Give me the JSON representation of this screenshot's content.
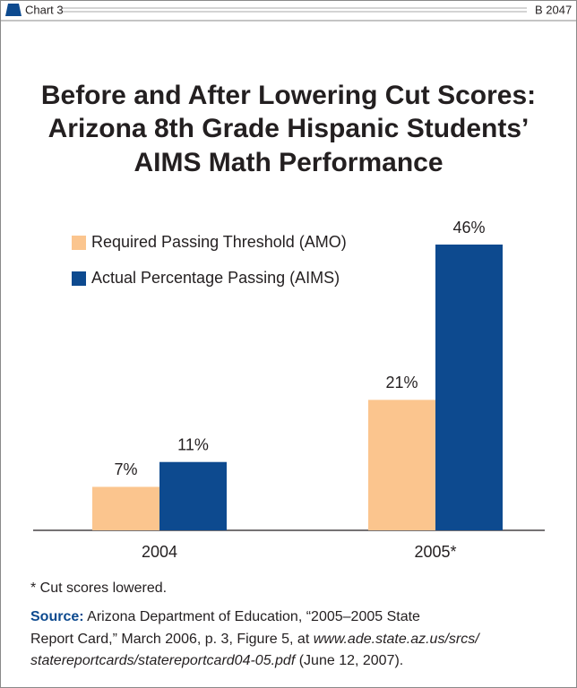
{
  "header": {
    "label": "Chart 3",
    "code": "B 2047"
  },
  "chart_data": {
    "type": "bar",
    "title": [
      "Before and After Lowering Cut Scores:",
      "Arizona 8th Grade Hispanic Students’",
      "AIMS Math Performance"
    ],
    "categories": [
      "2004",
      "2005*"
    ],
    "series": [
      {
        "name": "Required Passing Threshold (AMO)",
        "color": "#fbc58e",
        "values": [
          7,
          21
        ],
        "value_labels": [
          "7%",
          "21%"
        ]
      },
      {
        "name": "Actual Percentage Passing (AIMS)",
        "color": "#0d4a8f",
        "values": [
          11,
          46
        ],
        "value_labels": [
          "11%",
          "46%"
        ]
      }
    ],
    "legend": "top-left"
  },
  "footnote": "* Cut scores lowered.",
  "source": {
    "label": "Source:",
    "line1": " Arizona Department of Education, “2005–2005 State",
    "line2": "Report Card,” March 2006, p. 3, Figure 5, at ",
    "url1": "www.ade.state.az.us/srcs/",
    "url2": "statereportcards/statereportcard04-05.pdf",
    "line3": " (June 12, 2007)."
  }
}
